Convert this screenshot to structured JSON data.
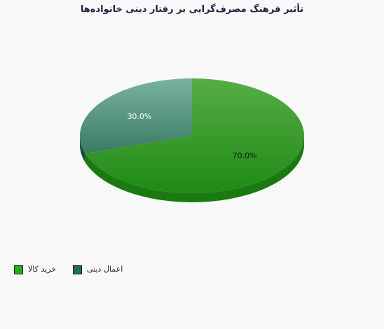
{
  "chart_data": {
    "type": "pie",
    "title": "تأثیر فرهنگ مصرف‌گرایی بر رفتار دینی خانواده‌ها",
    "categories": [
      "خرید کالا",
      "اعمال دینی"
    ],
    "values": [
      70.0,
      30.0
    ],
    "value_labels": [
      "70.0%",
      "30.0%"
    ],
    "colors": [
      "#2e9a1f",
      "#1f6e56"
    ],
    "legend_position": "bottom-left",
    "style": "3d"
  }
}
